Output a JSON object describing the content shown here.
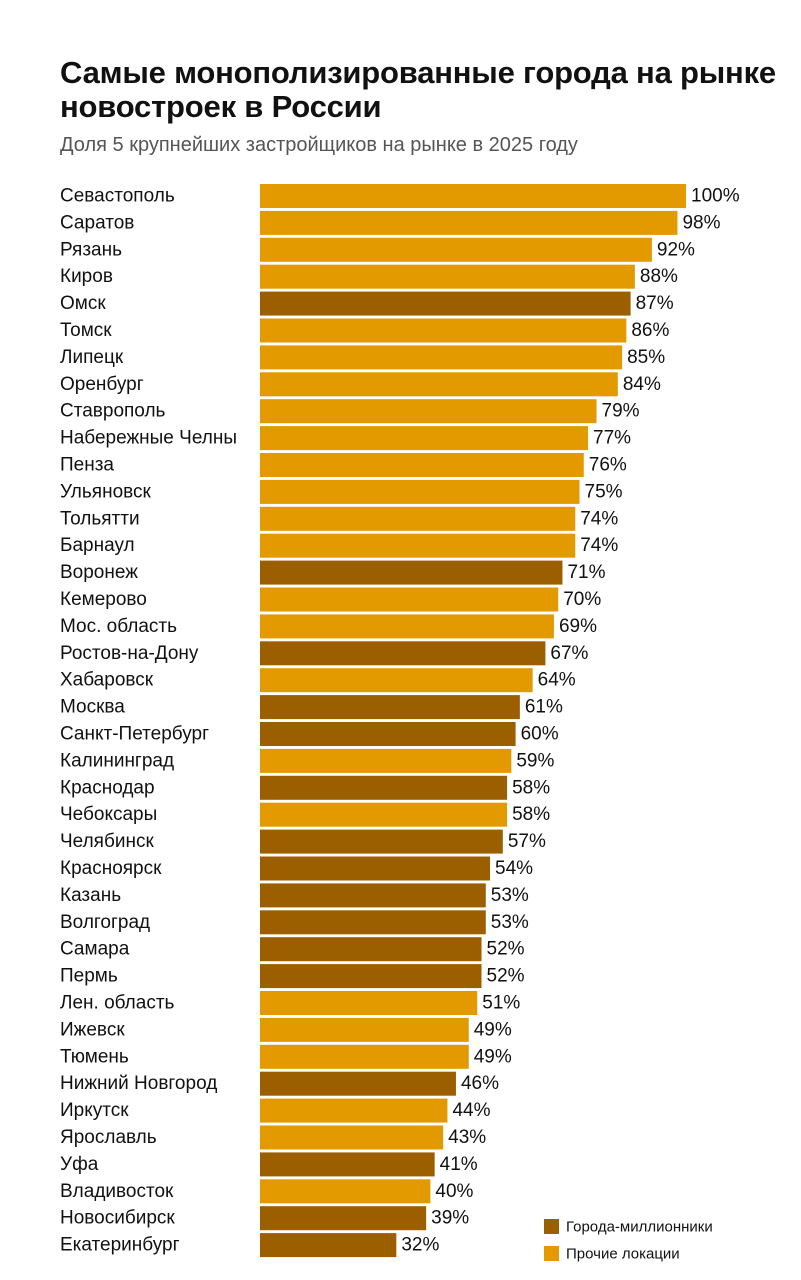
{
  "header": {
    "title": "Самые монополизированные города на рынке новостроек в России",
    "subtitle": "Доля 5 крупнейших застройщиков на рынке в 2025 году"
  },
  "colors": {
    "millionaire": "#9c5f00",
    "other": "#e39a00"
  },
  "chart_data": {
    "type": "bar",
    "orientation": "horizontal",
    "title": "Самые монополизированные города на рынке новостроек в России",
    "subtitle": "Доля 5 крупнейших застройщиков на рынке в 2025 году",
    "xlim": [
      0,
      100
    ],
    "grid": false,
    "legend_position": "bottom-right",
    "legend": [
      {
        "key": "millionaire",
        "label": "Города-миллионники"
      },
      {
        "key": "other",
        "label": "Прочие локации"
      }
    ],
    "rows": [
      {
        "city": "Севастополь",
        "value": 100,
        "label": "100%",
        "group": "other"
      },
      {
        "city": "Саратов",
        "value": 98,
        "label": "98%",
        "group": "other"
      },
      {
        "city": "Рязань",
        "value": 92,
        "label": "92%",
        "group": "other"
      },
      {
        "city": "Киров",
        "value": 88,
        "label": "88%",
        "group": "other"
      },
      {
        "city": "Омск",
        "value": 87,
        "label": "87%",
        "group": "millionaire"
      },
      {
        "city": "Томск",
        "value": 86,
        "label": "86%",
        "group": "other"
      },
      {
        "city": "Липецк",
        "value": 85,
        "label": "85%",
        "group": "other"
      },
      {
        "city": "Оренбург",
        "value": 84,
        "label": "84%",
        "group": "other"
      },
      {
        "city": "Ставрополь",
        "value": 79,
        "label": "79%",
        "group": "other"
      },
      {
        "city": "Набережные Челны",
        "value": 77,
        "label": "77%",
        "group": "other"
      },
      {
        "city": "Пенза",
        "value": 76,
        "label": "76%",
        "group": "other"
      },
      {
        "city": "Ульяновск",
        "value": 75,
        "label": "75%",
        "group": "other"
      },
      {
        "city": "Тольятти",
        "value": 74,
        "label": "74%",
        "group": "other"
      },
      {
        "city": "Барнаул",
        "value": 74,
        "label": "74%",
        "group": "other"
      },
      {
        "city": "Воронеж",
        "value": 71,
        "label": "71%",
        "group": "millionaire"
      },
      {
        "city": "Кемерово",
        "value": 70,
        "label": "70%",
        "group": "other"
      },
      {
        "city": "Мос. область",
        "value": 69,
        "label": "69%",
        "group": "other"
      },
      {
        "city": "Ростов-на-Дону",
        "value": 67,
        "label": "67%",
        "group": "millionaire"
      },
      {
        "city": "Хабаровск",
        "value": 64,
        "label": "64%",
        "group": "other"
      },
      {
        "city": "Москва",
        "value": 61,
        "label": "61%",
        "group": "millionaire"
      },
      {
        "city": "Санкт-Петербург",
        "value": 60,
        "label": "60%",
        "group": "millionaire"
      },
      {
        "city": "Калининград",
        "value": 59,
        "label": "59%",
        "group": "other"
      },
      {
        "city": "Краснодар",
        "value": 58,
        "label": "58%",
        "group": "millionaire"
      },
      {
        "city": "Чебоксары",
        "value": 58,
        "label": "58%",
        "group": "other"
      },
      {
        "city": "Челябинск",
        "value": 57,
        "label": "57%",
        "group": "millionaire"
      },
      {
        "city": "Красноярск",
        "value": 54,
        "label": "54%",
        "group": "millionaire"
      },
      {
        "city": "Казань",
        "value": 53,
        "label": "53%",
        "group": "millionaire"
      },
      {
        "city": "Волгоград",
        "value": 53,
        "label": "53%",
        "group": "millionaire"
      },
      {
        "city": "Самара",
        "value": 52,
        "label": "52%",
        "group": "millionaire"
      },
      {
        "city": "Пермь",
        "value": 52,
        "label": "52%",
        "group": "millionaire"
      },
      {
        "city": "Лен. область",
        "value": 51,
        "label": "51%",
        "group": "other"
      },
      {
        "city": "Ижевск",
        "value": 49,
        "label": "49%",
        "group": "other"
      },
      {
        "city": "Тюмень",
        "value": 49,
        "label": "49%",
        "group": "other"
      },
      {
        "city": "Нижний Новгород",
        "value": 46,
        "label": "46%",
        "group": "millionaire"
      },
      {
        "city": "Иркутск",
        "value": 44,
        "label": "44%",
        "group": "other"
      },
      {
        "city": "Ярославль",
        "value": 43,
        "label": "43%",
        "group": "other"
      },
      {
        "city": "Уфа",
        "value": 41,
        "label": "41%",
        "group": "millionaire"
      },
      {
        "city": "Владивосток",
        "value": 40,
        "label": "40%",
        "group": "other"
      },
      {
        "city": "Новосибирск",
        "value": 39,
        "label": "39%",
        "group": "millionaire"
      },
      {
        "city": "Екатеринбург",
        "value": 32,
        "label": "32%",
        "group": "millionaire"
      }
    ]
  }
}
